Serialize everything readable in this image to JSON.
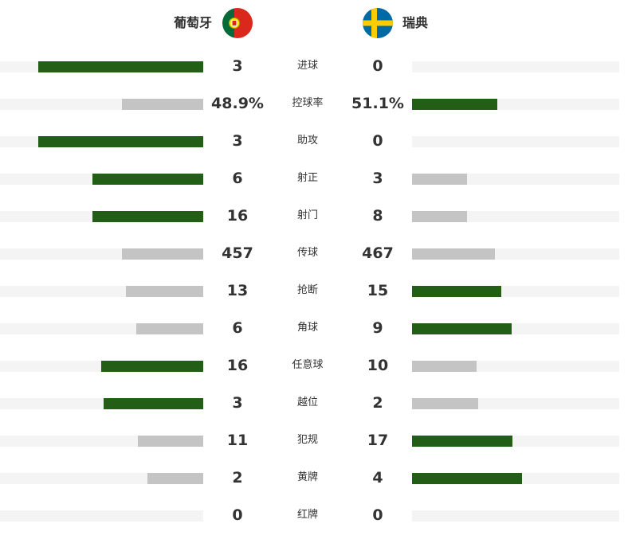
{
  "header": {
    "home_team": "葡萄牙",
    "away_team": "瑞典",
    "home_flag_icon": "portugal-flag-icon",
    "away_flag_icon": "sweden-flag-icon"
  },
  "colors": {
    "winner_bar": "#235e17",
    "loser_bar": "#c4c4c4",
    "track": "#f4f4f4"
  },
  "stats": [
    {
      "label": "进球",
      "home": "3",
      "away": "0",
      "home_fraction": 0.81,
      "away_fraction": 0.0
    },
    {
      "label": "控球率",
      "home": "48.9%",
      "away": "51.1%",
      "home_fraction": 0.4,
      "away_fraction": 0.41
    },
    {
      "label": "助攻",
      "home": "3",
      "away": "0",
      "home_fraction": 0.81,
      "away_fraction": 0.0
    },
    {
      "label": "射正",
      "home": "6",
      "away": "3",
      "home_fraction": 0.545,
      "away_fraction": 0.265
    },
    {
      "label": "射门",
      "home": "16",
      "away": "8",
      "home_fraction": 0.545,
      "away_fraction": 0.265
    },
    {
      "label": "传球",
      "home": "457",
      "away": "467",
      "home_fraction": 0.4,
      "away_fraction": 0.4
    },
    {
      "label": "抢断",
      "home": "13",
      "away": "15",
      "home_fraction": 0.38,
      "away_fraction": 0.43
    },
    {
      "label": "角球",
      "home": "6",
      "away": "9",
      "home_fraction": 0.33,
      "away_fraction": 0.48
    },
    {
      "label": "任意球",
      "home": "16",
      "away": "10",
      "home_fraction": 0.5,
      "away_fraction": 0.31
    },
    {
      "label": "越位",
      "home": "3",
      "away": "2",
      "home_fraction": 0.49,
      "away_fraction": 0.32
    },
    {
      "label": "犯规",
      "home": "11",
      "away": "17",
      "home_fraction": 0.32,
      "away_fraction": 0.485
    },
    {
      "label": "黄牌",
      "home": "2",
      "away": "4",
      "home_fraction": 0.275,
      "away_fraction": 0.53
    },
    {
      "label": "红牌",
      "home": "0",
      "away": "0",
      "home_fraction": 0.0,
      "away_fraction": 0.0
    }
  ]
}
